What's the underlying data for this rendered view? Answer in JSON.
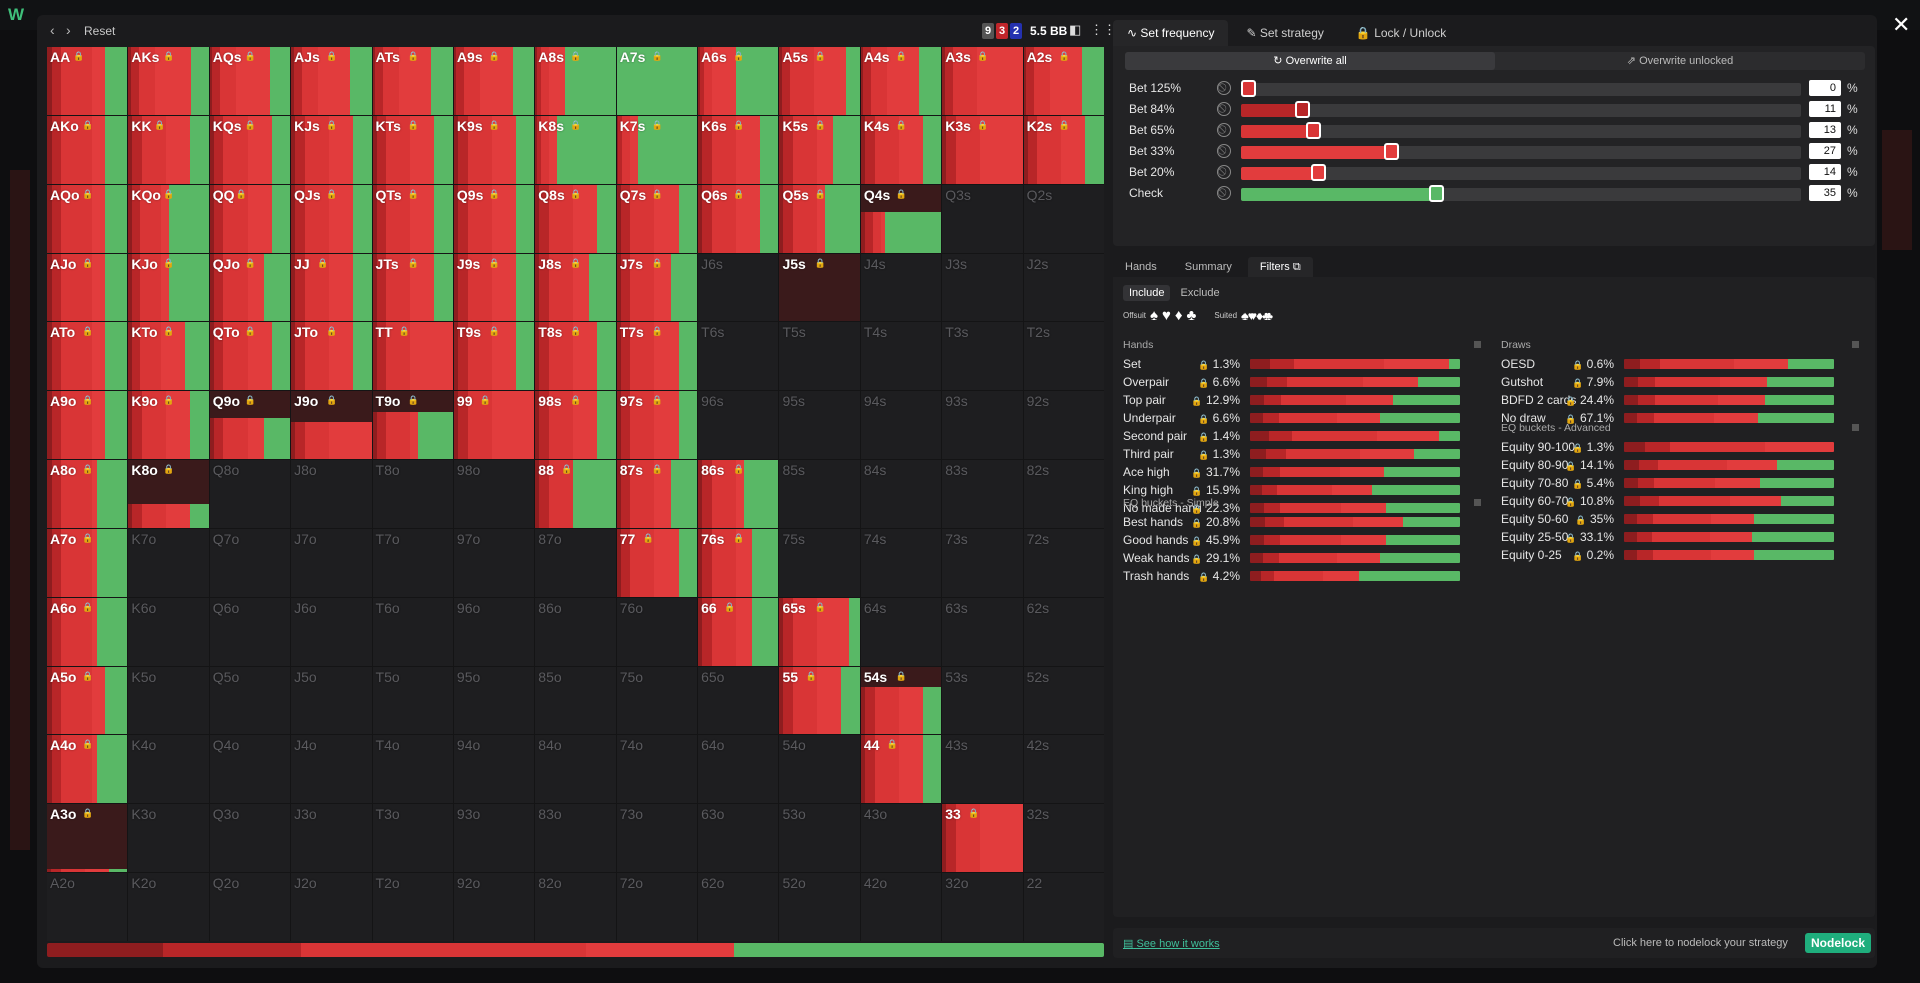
{
  "app": {
    "logo": "W"
  },
  "toolbar": {
    "reset": "Reset",
    "stack_badges": [
      "9",
      "3",
      "2"
    ],
    "stack_colors": [
      "#555555",
      "#c0252a",
      "#2431b0"
    ],
    "bb": "5.5 BB"
  },
  "colors": {
    "bet_dark": "#8e1d1f",
    "bet_mid": "#b82628",
    "bet_main": "#d93536",
    "bet_light": "#e23c3d",
    "check": "#59b866",
    "muted": "#3a3a3c"
  },
  "grid": [
    [
      "AA",
      "AKs",
      "AQs",
      "AJs",
      "ATs",
      "A9s",
      "A8s",
      "A7s",
      "A6s",
      "A5s",
      "A4s",
      "A3s",
      "A2s"
    ],
    [
      "AKo",
      "KK",
      "KQs",
      "KJs",
      "KTs",
      "K9s",
      "K8s",
      "K7s",
      "K6s",
      "K5s",
      "K4s",
      "K3s",
      "K2s"
    ],
    [
      "AQo",
      "KQo",
      "QQ",
      "QJs",
      "QTs",
      "Q9s",
      "Q8s",
      "Q7s",
      "Q6s",
      "Q5s",
      "Q4s",
      "Q3s",
      "Q2s"
    ],
    [
      "AJo",
      "KJo",
      "QJo",
      "JJ",
      "JTs",
      "J9s",
      "J8s",
      "J7s",
      "J6s",
      "J5s",
      "J4s",
      "J3s",
      "J2s"
    ],
    [
      "ATo",
      "KTo",
      "QTo",
      "JTo",
      "TT",
      "T9s",
      "T8s",
      "T7s",
      "T6s",
      "T5s",
      "T4s",
      "T3s",
      "T2s"
    ],
    [
      "A9o",
      "K9o",
      "Q9o",
      "J9o",
      "T9o",
      "99",
      "98s",
      "97s",
      "96s",
      "95s",
      "94s",
      "93s",
      "92s"
    ],
    [
      "A8o",
      "K8o",
      "Q8o",
      "J8o",
      "T8o",
      "98o",
      "88",
      "87s",
      "86s",
      "85s",
      "84s",
      "83s",
      "82s"
    ],
    [
      "A7o",
      "K7o",
      "Q7o",
      "J7o",
      "T7o",
      "97o",
      "87o",
      "77",
      "76s",
      "75s",
      "74s",
      "73s",
      "72s"
    ],
    [
      "A6o",
      "K6o",
      "Q6o",
      "J6o",
      "T6o",
      "96o",
      "86o",
      "76o",
      "66",
      "65s",
      "64s",
      "63s",
      "62s"
    ],
    [
      "A5o",
      "K5o",
      "Q5o",
      "J5o",
      "T5o",
      "95o",
      "85o",
      "75o",
      "65o",
      "55",
      "54s",
      "53s",
      "52s"
    ],
    [
      "A4o",
      "K4o",
      "Q4o",
      "J4o",
      "T4o",
      "94o",
      "84o",
      "74o",
      "64o",
      "54o",
      "44",
      "43s",
      "42s"
    ],
    [
      "A3o",
      "K3o",
      "Q3o",
      "J3o",
      "T3o",
      "93o",
      "83o",
      "73o",
      "63o",
      "53o",
      "43o",
      "33",
      "32s"
    ],
    [
      "A2o",
      "K2o",
      "Q2o",
      "J2o",
      "T2o",
      "92o",
      "82o",
      "72o",
      "62o",
      "52o",
      "42o",
      "32o",
      "22"
    ]
  ],
  "hand_strategies": {
    "AA": [
      1,
      0.06,
      0.12,
      0.38,
      0.16,
      0.28
    ],
    "AKs": [
      1,
      0.03,
      0.1,
      0.2,
      0.45,
      0.22
    ],
    "AQs": [
      1,
      0.03,
      0.1,
      0.2,
      0.42,
      0.25
    ],
    "AJs": [
      1,
      0.03,
      0.1,
      0.2,
      0.4,
      0.27
    ],
    "ATs": [
      1,
      0.03,
      0.1,
      0.2,
      0.4,
      0.27
    ],
    "A9s": [
      1,
      0.03,
      0.1,
      0.2,
      0.4,
      0.27
    ],
    "A8s": [
      1,
      0.02,
      0.05,
      0.1,
      0.2,
      0.63
    ],
    "A7s": [
      1,
      0,
      0,
      0,
      0,
      1
    ],
    "A6s": [
      1,
      0.02,
      0.05,
      0.1,
      0.3,
      0.53
    ],
    "A5s": [
      1,
      0.03,
      0.1,
      0.3,
      0.4,
      0.17
    ],
    "A4s": [
      1,
      0.03,
      0.1,
      0.2,
      0.4,
      0.27
    ],
    "A3s": [
      1,
      0.03,
      0.1,
      0.3,
      0.57,
      0
    ],
    "A2s": [
      1,
      0.03,
      0.1,
      0.2,
      0.4,
      0.27
    ],
    "AKo": [
      1,
      0.06,
      0.12,
      0.38,
      0.16,
      0.28
    ],
    "KK": [
      1,
      0.05,
      0.12,
      0.3,
      0.3,
      0.23
    ],
    "KQs": [
      1,
      0.05,
      0.12,
      0.3,
      0.3,
      0.23
    ],
    "KJs": [
      1,
      0.05,
      0.12,
      0.3,
      0.3,
      0.23
    ],
    "KTs": [
      1,
      0.05,
      0.12,
      0.3,
      0.3,
      0.23
    ],
    "K9s": [
      1,
      0.05,
      0.12,
      0.3,
      0.3,
      0.23
    ],
    "K8s": [
      1,
      0.02,
      0.05,
      0.1,
      0.1,
      0.73
    ],
    "K7s": [
      1,
      0.02,
      0.05,
      0.1,
      0.1,
      0.73
    ],
    "K6s": [
      1,
      0.05,
      0.12,
      0.3,
      0.3,
      0.23
    ],
    "K5s": [
      1,
      0.05,
      0.12,
      0.3,
      0.2,
      0.33
    ],
    "K4s": [
      1,
      0.05,
      0.12,
      0.3,
      0.3,
      0.23
    ],
    "K3s": [
      1,
      0.05,
      0.12,
      0.3,
      0.53,
      0
    ],
    "K2s": [
      1,
      0.05,
      0.12,
      0.3,
      0.3,
      0.23
    ],
    "AQo": [
      1,
      0.06,
      0.12,
      0.38,
      0.16,
      0.28
    ],
    "KQo": [
      1,
      0.05,
      0.1,
      0.25,
      0.1,
      0.5
    ],
    "QQ": [
      1,
      0.05,
      0.12,
      0.3,
      0.3,
      0.23
    ],
    "QJs": [
      1,
      0.05,
      0.12,
      0.3,
      0.3,
      0.23
    ],
    "QTs": [
      1,
      0.05,
      0.12,
      0.3,
      0.3,
      0.23
    ],
    "Q9s": [
      1,
      0.05,
      0.12,
      0.3,
      0.3,
      0.23
    ],
    "Q8s": [
      1,
      0.05,
      0.12,
      0.3,
      0.3,
      0.23
    ],
    "Q7s": [
      1,
      0.05,
      0.12,
      0.3,
      0.3,
      0.23
    ],
    "Q6s": [
      1,
      0.05,
      0.12,
      0.3,
      0.3,
      0.23
    ],
    "Q5s": [
      1,
      0.05,
      0.12,
      0.3,
      0.1,
      0.43
    ],
    "Q4s": [
      0.6,
      0.05,
      0.1,
      0.1,
      0.05,
      0.7
    ],
    "AJo": [
      1,
      0.06,
      0.12,
      0.38,
      0.16,
      0.28
    ],
    "KJo": [
      1,
      0.05,
      0.1,
      0.25,
      0.1,
      0.5
    ],
    "QJo": [
      1,
      0.05,
      0.12,
      0.3,
      0.2,
      0.33
    ],
    "JJ": [
      1,
      0.05,
      0.12,
      0.3,
      0.3,
      0.23
    ],
    "JTs": [
      1,
      0.05,
      0.12,
      0.3,
      0.3,
      0.23
    ],
    "J9s": [
      1,
      0.05,
      0.12,
      0.3,
      0.3,
      0.23
    ],
    "J8s": [
      1,
      0.05,
      0.12,
      0.3,
      0.2,
      0.33
    ],
    "J7s": [
      1,
      0.05,
      0.12,
      0.3,
      0.2,
      0.33
    ],
    "J5s": [
      0,
      0,
      0,
      0,
      0,
      0
    ],
    "ATo": [
      1,
      0.06,
      0.12,
      0.38,
      0.16,
      0.28
    ],
    "KTo": [
      1,
      0.05,
      0.1,
      0.25,
      0.3,
      0.3
    ],
    "QTo": [
      1,
      0.05,
      0.12,
      0.3,
      0.3,
      0.23
    ],
    "JTo": [
      1,
      0.05,
      0.12,
      0.3,
      0.3,
      0.23
    ],
    "TT": [
      1,
      0.05,
      0.12,
      0.3,
      0.53,
      0
    ],
    "T9s": [
      1,
      0.05,
      0.12,
      0.3,
      0.3,
      0.23
    ],
    "T8s": [
      1,
      0.05,
      0.12,
      0.3,
      0.3,
      0.23
    ],
    "T7s": [
      1,
      0.05,
      0.12,
      0.3,
      0.3,
      0.23
    ],
    "A9o": [
      1,
      0.06,
      0.12,
      0.38,
      0.16,
      0.28
    ],
    "K9o": [
      1,
      0.05,
      0.12,
      0.3,
      0.3,
      0.23
    ],
    "Q9o": [
      0.6,
      0.05,
      0.12,
      0.3,
      0.2,
      0.33
    ],
    "J9o": [
      0.55,
      0.05,
      0.12,
      0.3,
      0.53,
      0
    ],
    "T9o": [
      0.7,
      0.05,
      0.12,
      0.3,
      0.1,
      0.43
    ],
    "99": [
      1,
      0.05,
      0.12,
      0.3,
      0.53,
      0
    ],
    "98s": [
      1,
      0.05,
      0.12,
      0.3,
      0.3,
      0.23
    ],
    "97s": [
      1,
      0.05,
      0.12,
      0.3,
      0.3,
      0.23
    ],
    "A8o": [
      1,
      0.06,
      0.12,
      0.38,
      0.06,
      0.38
    ],
    "K8o": [
      0.35,
      0.05,
      0.12,
      0.3,
      0.3,
      0.23
    ],
    "88": [
      1,
      0.05,
      0.12,
      0.3,
      0,
      0.53
    ],
    "87s": [
      1,
      0.05,
      0.12,
      0.3,
      0.2,
      0.33
    ],
    "86s": [
      1,
      0.05,
      0.12,
      0.3,
      0.1,
      0.43
    ],
    "A7o": [
      1,
      0.06,
      0.12,
      0.38,
      0.06,
      0.38
    ],
    "77": [
      1,
      0.05,
      0.12,
      0.3,
      0.3,
      0.23
    ],
    "76s": [
      1,
      0.05,
      0.12,
      0.3,
      0.2,
      0.33
    ],
    "A6o": [
      1,
      0.06,
      0.12,
      0.38,
      0.06,
      0.38
    ],
    "66": [
      1,
      0.05,
      0.12,
      0.3,
      0.2,
      0.33
    ],
    "65s": [
      1,
      0.05,
      0.12,
      0.3,
      0.4,
      0.13
    ],
    "A5o": [
      1,
      0.06,
      0.12,
      0.38,
      0.16,
      0.28
    ],
    "55": [
      1,
      0.05,
      0.12,
      0.3,
      0.3,
      0.23
    ],
    "54s": [
      0.7,
      0.05,
      0.12,
      0.3,
      0.3,
      0.23
    ],
    "A4o": [
      1,
      0.06,
      0.12,
      0.38,
      0.06,
      0.38
    ],
    "44": [
      1,
      0.05,
      0.12,
      0.3,
      0.3,
      0.23
    ],
    "A3o": [
      0.04,
      0.05,
      0.12,
      0.3,
      0.3,
      0.23
    ],
    "33": [
      1,
      0.05,
      0.12,
      0.3,
      0.53,
      0
    ]
  },
  "summary_strategy": [
    0,
    0.11,
    0.13,
    0.27,
    0.14,
    0.35
  ],
  "panel": {
    "tabs": [
      {
        "icon": "∿",
        "label": "Set frequency"
      },
      {
        "icon": "✎",
        "label": "Set strategy"
      },
      {
        "icon": "🔒",
        "label": "Lock / Unlock"
      }
    ],
    "overwrite": [
      {
        "icon": "↻",
        "label": "Overwrite all"
      },
      {
        "icon": "⇗",
        "label": "Overwrite unlocked"
      }
    ],
    "frequencies": [
      {
        "label": "Bet 125%",
        "value": "0",
        "pct": 0.0,
        "color": "#d93536"
      },
      {
        "label": "Bet 84%",
        "value": "11",
        "pct": 0.11,
        "color": "#b82628"
      },
      {
        "label": "Bet 65%",
        "value": "13",
        "pct": 0.13,
        "color": "#d93536"
      },
      {
        "label": "Bet 33%",
        "value": "27",
        "pct": 0.27,
        "color": "#e23c3d"
      },
      {
        "label": "Bet 20%",
        "value": "14",
        "pct": 0.14,
        "color": "#e23c3d"
      },
      {
        "label": "Check",
        "value": "35",
        "pct": 0.35,
        "color": "#59b866"
      }
    ],
    "pct_sign": "%",
    "sub_tabs": [
      "Hands",
      "Summary",
      "Filters"
    ],
    "include": "Include",
    "exclude": "Exclude",
    "offsuit_label": "Offsuit",
    "suited_label": "Suited",
    "offsuit_suits": [
      "♠",
      "♥",
      "♦",
      "♣"
    ],
    "suited_suits": [
      "♠♠",
      "♥♥",
      "♦♦",
      "♣♣"
    ],
    "hands_title": "Hands",
    "hands": [
      {
        "name": "Set",
        "pct": "1.3%",
        "check": 0.05
      },
      {
        "name": "Overpair",
        "pct": "6.6%",
        "check": 0.2
      },
      {
        "name": "Top pair",
        "pct": "12.9%",
        "check": 0.32
      },
      {
        "name": "Underpair",
        "pct": "6.6%",
        "check": 0.38
      },
      {
        "name": "Second pair",
        "pct": "1.4%",
        "check": 0.1
      },
      {
        "name": "Third pair",
        "pct": "1.3%",
        "check": 0.22
      },
      {
        "name": "Ace high",
        "pct": "31.7%",
        "check": 0.36
      },
      {
        "name": "King high",
        "pct": "15.9%",
        "check": 0.42
      },
      {
        "name": "No made hand",
        "pct": "22.3%",
        "check": 0.35
      }
    ],
    "eq_simple_title": "EQ buckets - Simple",
    "eq_simple": [
      {
        "name": "Best hands",
        "pct": "20.8%",
        "check": 0.27
      },
      {
        "name": "Good hands",
        "pct": "45.9%",
        "check": 0.35
      },
      {
        "name": "Weak hands",
        "pct": "29.1%",
        "check": 0.38
      },
      {
        "name": "Trash hands",
        "pct": "4.2%",
        "check": 0.48
      }
    ],
    "draws_title": "Draws",
    "draws": [
      {
        "name": "OESD",
        "pct": "0.6%",
        "check": 0.22
      },
      {
        "name": "Gutshot",
        "pct": "7.9%",
        "check": 0.32
      },
      {
        "name": "BDFD 2 cards",
        "pct": "24.4%",
        "check": 0.33
      },
      {
        "name": "No draw",
        "pct": "67.1%",
        "check": 0.36
      }
    ],
    "eq_adv_title": "EQ buckets - Advanced",
    "eq_adv": [
      {
        "name": "Equity 90-100",
        "pct": "1.3%",
        "check": 0.0
      },
      {
        "name": "Equity 80-90",
        "pct": "14.1%",
        "check": 0.27
      },
      {
        "name": "Equity 70-80",
        "pct": "5.4%",
        "check": 0.35
      },
      {
        "name": "Equity 60-70",
        "pct": "10.8%",
        "check": 0.25
      },
      {
        "name": "Equity 50-60",
        "pct": "35%",
        "check": 0.38
      },
      {
        "name": "Equity 25-50",
        "pct": "33.1%",
        "check": 0.39
      },
      {
        "name": "Equity 0-25",
        "pct": "0.2%",
        "check": 0.38
      }
    ]
  },
  "footer": {
    "see_how": "See how it works",
    "click_here": "Click here to nodelock your strategy",
    "nodelock": "Nodelock"
  }
}
